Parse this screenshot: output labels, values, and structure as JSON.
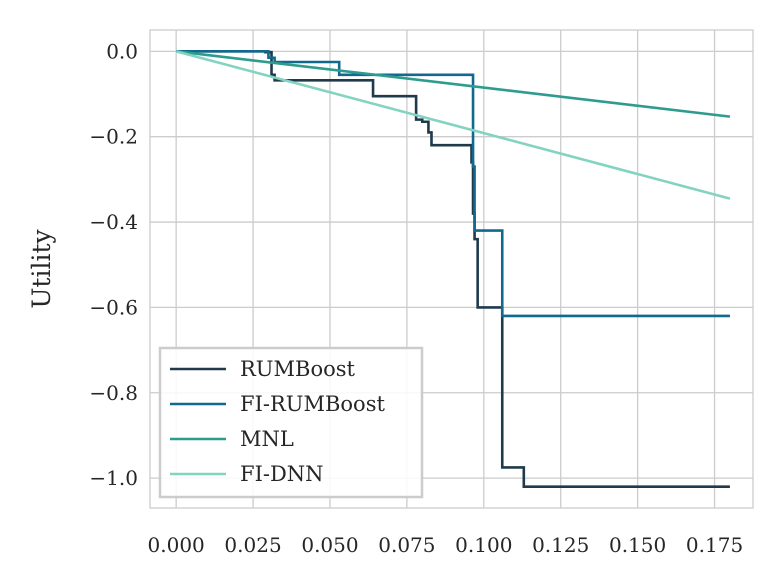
{
  "chart_data": {
    "type": "line",
    "title": "",
    "xlabel": "",
    "ylabel": "Utility",
    "xlim": [
      -0.0085,
      0.1875
    ],
    "ylim": [
      -1.07,
      0.05
    ],
    "xticks": [
      0.0,
      0.025,
      0.05,
      0.075,
      0.1,
      0.125,
      0.15,
      0.175
    ],
    "xtick_labels": [
      "0.000",
      "0.025",
      "0.050",
      "0.075",
      "0.100",
      "0.125",
      "0.150",
      "0.175"
    ],
    "yticks": [
      0.0,
      -0.2,
      -0.4,
      -0.6,
      -0.8,
      -1.0
    ],
    "ytick_labels": [
      "0.0",
      "−0.2",
      "−0.4",
      "−0.6",
      "−0.8",
      "−1.0"
    ],
    "grid": true,
    "legend_position": "lower-left",
    "series": [
      {
        "name": "RUMBoost",
        "color": "#203a4c",
        "step": true,
        "x": [
          0.0,
          0.029,
          0.031,
          0.032,
          0.064,
          0.078,
          0.08,
          0.082,
          0.083,
          0.096,
          0.0965,
          0.097,
          0.098,
          0.1,
          0.106,
          0.113,
          0.18
        ],
        "y": [
          0.0,
          -0.002,
          -0.055,
          -0.068,
          -0.105,
          -0.16,
          -0.165,
          -0.19,
          -0.22,
          -0.26,
          -0.38,
          -0.44,
          -0.6,
          -0.6,
          -0.975,
          -1.02,
          -1.02
        ]
      },
      {
        "name": "FI-RUMBoost",
        "color": "#11698e",
        "step": true,
        "x": [
          0.0,
          0.03,
          0.032,
          0.053,
          0.0965,
          0.097,
          0.106,
          0.18
        ],
        "y": [
          0.0,
          -0.015,
          -0.025,
          -0.055,
          -0.27,
          -0.42,
          -0.62,
          -0.62
        ]
      },
      {
        "name": "MNL",
        "color": "#2e9b8f",
        "step": false,
        "x": [
          0.0,
          0.18
        ],
        "y": [
          0.0,
          -0.153
        ]
      },
      {
        "name": "FI-DNN",
        "color": "#83d3c1",
        "step": false,
        "x": [
          0.0,
          0.18
        ],
        "y": [
          0.0,
          -0.345
        ]
      }
    ]
  }
}
